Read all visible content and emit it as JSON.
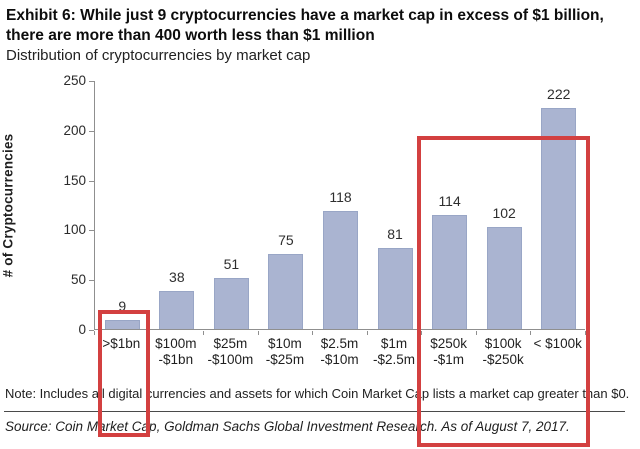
{
  "header": {
    "title": "Exhibit 6: While just 9 cryptocurrencies have a market cap in excess of $1 billion, there are more than 400 worth less than $1 million",
    "subtitle": "Distribution of cryptocurrencies by market cap"
  },
  "chart_data": {
    "type": "bar",
    "title": "Distribution of cryptocurrencies by market cap",
    "xlabel": "",
    "ylabel": "# of Cryptocurrencies",
    "ylim": [
      0,
      250
    ],
    "yticks": [
      0,
      50,
      100,
      150,
      200,
      250
    ],
    "grid": false,
    "legend": "none",
    "categories": [
      ">$1bn",
      "$100m\n-$1bn",
      "$25m\n-$100m",
      "$10m\n-$25m",
      "$2.5m\n-$10m",
      "$1m\n-$2.5m",
      "$250k\n-$1m",
      "$100k\n-$250k",
      "< $100k"
    ],
    "values": [
      9,
      38,
      51,
      75,
      118,
      81,
      114,
      102,
      222
    ],
    "bar_color": "#aab4d1",
    "highlight_color": "#d34040",
    "highlights": [
      {
        "description": "9 cryptocurrencies with market cap above $1 billion",
        "category_indexes": [
          0
        ]
      },
      {
        "description": "more than 400 cryptocurrencies worth less than $1 million",
        "category_indexes": [
          6,
          7,
          8
        ]
      }
    ]
  },
  "footer": {
    "note": "Note: Includes all digital currencies and assets for which Coin Market Cap lists a market cap greater than $0.",
    "source": "Source: Coin Market Cap, Goldman Sachs Global Investment Research. As of August 7, 2017."
  }
}
